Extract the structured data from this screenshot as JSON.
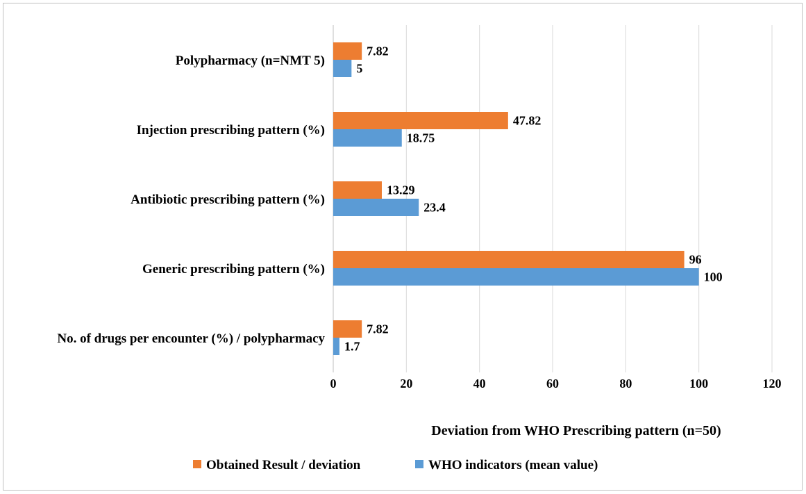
{
  "chart_data": {
    "type": "bar",
    "orientation": "horizontal",
    "categories": [
      "Polypharmacy (n=NMT 5)",
      "Injection prescribing pattern (%)",
      "Antibiotic prescribing pattern (%)",
      "Generic prescribing pattern (%)",
      "No. of drugs per encounter (%) / polypharmacy"
    ],
    "series": [
      {
        "name": "Obtained Result / deviation",
        "color": "#ED7D31",
        "values": [
          7.82,
          47.82,
          13.29,
          96,
          7.82
        ],
        "labels": [
          "7.82",
          "47.82",
          "13.29",
          "96",
          "7.82"
        ]
      },
      {
        "name": "WHO indicators (mean value)",
        "color": "#5B9BD5",
        "values": [
          5,
          18.75,
          23.4,
          100,
          1.7
        ],
        "labels": [
          "5",
          "18.75",
          "23.4",
          "100",
          "1.7"
        ]
      }
    ],
    "xlabel": "Deviation from WHO Prescribing pattern (n=50)",
    "xlim": [
      0,
      120
    ],
    "xticks": [
      "0",
      "20",
      "40",
      "60",
      "80",
      "100",
      "120"
    ],
    "grid": true,
    "legend": "bottom"
  }
}
